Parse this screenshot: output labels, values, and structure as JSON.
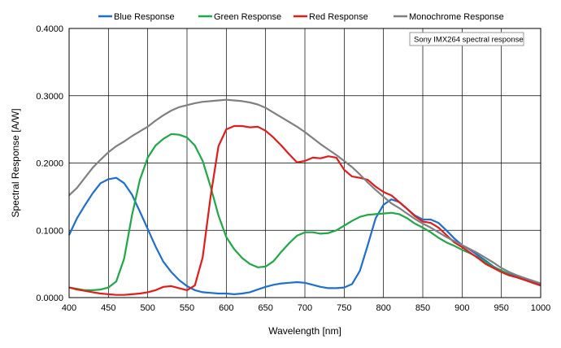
{
  "chart_data": {
    "type": "line",
    "xlabel": "Wavelength [nm]",
    "ylabel": "Spectral Response [A/W]",
    "xlim": [
      400,
      1000
    ],
    "ylim": [
      0,
      0.4
    ],
    "x_ticks": [
      400,
      450,
      500,
      550,
      600,
      650,
      700,
      750,
      800,
      850,
      900,
      950,
      1000
    ],
    "y_ticks": [
      0,
      0.1,
      0.2,
      0.3,
      0.4
    ],
    "x_tick_labels": [
      "400",
      "450",
      "500",
      "550",
      "600",
      "650",
      "700",
      "750",
      "800",
      "850",
      "900",
      "950",
      "1000"
    ],
    "y_tick_labels": [
      "0.0000",
      "0.1000",
      "0.2000",
      "0.3000",
      "0.4000"
    ],
    "grid": true,
    "legend_position": "top",
    "annotation": "Sony IMX264 spectral response",
    "series": [
      {
        "name": "Blue Response",
        "color": "#1f6fd0",
        "points": [
          [
            400,
            0.093
          ],
          [
            410,
            0.118
          ],
          [
            420,
            0.137
          ],
          [
            430,
            0.155
          ],
          [
            440,
            0.17
          ],
          [
            450,
            0.176
          ],
          [
            460,
            0.178
          ],
          [
            470,
            0.17
          ],
          [
            480,
            0.153
          ],
          [
            490,
            0.128
          ],
          [
            500,
            0.102
          ],
          [
            510,
            0.076
          ],
          [
            520,
            0.053
          ],
          [
            530,
            0.038
          ],
          [
            540,
            0.026
          ],
          [
            550,
            0.017
          ],
          [
            560,
            0.011
          ],
          [
            570,
            0.008
          ],
          [
            580,
            0.007
          ],
          [
            590,
            0.006
          ],
          [
            600,
            0.006
          ],
          [
            610,
            0.005
          ],
          [
            620,
            0.006
          ],
          [
            630,
            0.008
          ],
          [
            640,
            0.012
          ],
          [
            650,
            0.016
          ],
          [
            660,
            0.019
          ],
          [
            670,
            0.021
          ],
          [
            680,
            0.022
          ],
          [
            690,
            0.023
          ],
          [
            700,
            0.022
          ],
          [
            710,
            0.019
          ],
          [
            720,
            0.016
          ],
          [
            730,
            0.014
          ],
          [
            740,
            0.014
          ],
          [
            750,
            0.015
          ],
          [
            760,
            0.02
          ],
          [
            770,
            0.04
          ],
          [
            780,
            0.078
          ],
          [
            790,
            0.118
          ],
          [
            800,
            0.138
          ],
          [
            810,
            0.146
          ],
          [
            820,
            0.142
          ],
          [
            830,
            0.132
          ],
          [
            840,
            0.122
          ],
          [
            850,
            0.116
          ],
          [
            860,
            0.116
          ],
          [
            870,
            0.111
          ],
          [
            880,
            0.1
          ],
          [
            890,
            0.088
          ],
          [
            900,
            0.078
          ],
          [
            910,
            0.071
          ],
          [
            920,
            0.063
          ],
          [
            930,
            0.055
          ],
          [
            940,
            0.046
          ],
          [
            950,
            0.04
          ],
          [
            960,
            0.035
          ],
          [
            970,
            0.031
          ],
          [
            980,
            0.027
          ],
          [
            990,
            0.024
          ],
          [
            1000,
            0.02
          ]
        ]
      },
      {
        "name": "Green Response",
        "color": "#1ea846",
        "points": [
          [
            400,
            0.015
          ],
          [
            410,
            0.013
          ],
          [
            420,
            0.011
          ],
          [
            430,
            0.011
          ],
          [
            440,
            0.012
          ],
          [
            450,
            0.015
          ],
          [
            460,
            0.024
          ],
          [
            470,
            0.058
          ],
          [
            480,
            0.122
          ],
          [
            490,
            0.175
          ],
          [
            500,
            0.208
          ],
          [
            510,
            0.226
          ],
          [
            520,
            0.236
          ],
          [
            530,
            0.243
          ],
          [
            540,
            0.242
          ],
          [
            550,
            0.238
          ],
          [
            560,
            0.226
          ],
          [
            570,
            0.203
          ],
          [
            580,
            0.165
          ],
          [
            590,
            0.122
          ],
          [
            600,
            0.09
          ],
          [
            610,
            0.072
          ],
          [
            620,
            0.059
          ],
          [
            630,
            0.05
          ],
          [
            640,
            0.045
          ],
          [
            650,
            0.046
          ],
          [
            660,
            0.054
          ],
          [
            670,
            0.068
          ],
          [
            680,
            0.081
          ],
          [
            690,
            0.092
          ],
          [
            700,
            0.097
          ],
          [
            710,
            0.097
          ],
          [
            720,
            0.095
          ],
          [
            730,
            0.096
          ],
          [
            740,
            0.1
          ],
          [
            750,
            0.107
          ],
          [
            760,
            0.114
          ],
          [
            770,
            0.12
          ],
          [
            780,
            0.123
          ],
          [
            790,
            0.124
          ],
          [
            800,
            0.125
          ],
          [
            810,
            0.126
          ],
          [
            820,
            0.124
          ],
          [
            830,
            0.118
          ],
          [
            840,
            0.11
          ],
          [
            850,
            0.104
          ],
          [
            860,
            0.097
          ],
          [
            870,
            0.089
          ],
          [
            880,
            0.082
          ],
          [
            890,
            0.077
          ],
          [
            900,
            0.071
          ],
          [
            910,
            0.066
          ],
          [
            920,
            0.06
          ],
          [
            930,
            0.053
          ],
          [
            940,
            0.045
          ],
          [
            950,
            0.04
          ],
          [
            960,
            0.034
          ],
          [
            970,
            0.03
          ],
          [
            980,
            0.026
          ],
          [
            990,
            0.022
          ],
          [
            1000,
            0.018
          ]
        ]
      },
      {
        "name": "Red Response",
        "color": "#e41b1b",
        "points": [
          [
            400,
            0.015
          ],
          [
            410,
            0.012
          ],
          [
            420,
            0.01
          ],
          [
            430,
            0.008
          ],
          [
            440,
            0.006
          ],
          [
            450,
            0.005
          ],
          [
            460,
            0.004
          ],
          [
            470,
            0.004
          ],
          [
            480,
            0.005
          ],
          [
            490,
            0.006
          ],
          [
            500,
            0.008
          ],
          [
            510,
            0.011
          ],
          [
            520,
            0.016
          ],
          [
            530,
            0.017
          ],
          [
            540,
            0.014
          ],
          [
            550,
            0.011
          ],
          [
            560,
            0.018
          ],
          [
            570,
            0.06
          ],
          [
            580,
            0.15
          ],
          [
            590,
            0.225
          ],
          [
            600,
            0.25
          ],
          [
            610,
            0.255
          ],
          [
            620,
            0.255
          ],
          [
            630,
            0.253
          ],
          [
            640,
            0.254
          ],
          [
            650,
            0.248
          ],
          [
            660,
            0.238
          ],
          [
            670,
            0.226
          ],
          [
            680,
            0.213
          ],
          [
            690,
            0.201
          ],
          [
            700,
            0.203
          ],
          [
            710,
            0.208
          ],
          [
            720,
            0.207
          ],
          [
            730,
            0.21
          ],
          [
            740,
            0.208
          ],
          [
            750,
            0.19
          ],
          [
            760,
            0.18
          ],
          [
            770,
            0.178
          ],
          [
            780,
            0.175
          ],
          [
            790,
            0.165
          ],
          [
            800,
            0.157
          ],
          [
            810,
            0.152
          ],
          [
            820,
            0.142
          ],
          [
            830,
            0.132
          ],
          [
            840,
            0.121
          ],
          [
            850,
            0.113
          ],
          [
            860,
            0.111
          ],
          [
            870,
            0.104
          ],
          [
            880,
            0.093
          ],
          [
            890,
            0.082
          ],
          [
            900,
            0.075
          ],
          [
            910,
            0.067
          ],
          [
            920,
            0.059
          ],
          [
            930,
            0.05
          ],
          [
            940,
            0.044
          ],
          [
            950,
            0.038
          ],
          [
            960,
            0.033
          ],
          [
            970,
            0.03
          ],
          [
            980,
            0.026
          ],
          [
            990,
            0.022
          ],
          [
            1000,
            0.018
          ]
        ]
      },
      {
        "name": "Monochrome Response",
        "color": "#808080",
        "points": [
          [
            400,
            0.152
          ],
          [
            410,
            0.163
          ],
          [
            420,
            0.178
          ],
          [
            430,
            0.193
          ],
          [
            440,
            0.205
          ],
          [
            450,
            0.216
          ],
          [
            460,
            0.225
          ],
          [
            470,
            0.232
          ],
          [
            480,
            0.24
          ],
          [
            490,
            0.247
          ],
          [
            500,
            0.254
          ],
          [
            510,
            0.263
          ],
          [
            520,
            0.271
          ],
          [
            530,
            0.278
          ],
          [
            540,
            0.283
          ],
          [
            550,
            0.286
          ],
          [
            560,
            0.289
          ],
          [
            570,
            0.291
          ],
          [
            580,
            0.292
          ],
          [
            590,
            0.293
          ],
          [
            600,
            0.294
          ],
          [
            610,
            0.293
          ],
          [
            620,
            0.292
          ],
          [
            630,
            0.29
          ],
          [
            640,
            0.287
          ],
          [
            650,
            0.282
          ],
          [
            660,
            0.275
          ],
          [
            670,
            0.268
          ],
          [
            680,
            0.261
          ],
          [
            690,
            0.254
          ],
          [
            700,
            0.246
          ],
          [
            710,
            0.237
          ],
          [
            720,
            0.228
          ],
          [
            730,
            0.22
          ],
          [
            740,
            0.212
          ],
          [
            750,
            0.203
          ],
          [
            760,
            0.194
          ],
          [
            770,
            0.183
          ],
          [
            780,
            0.171
          ],
          [
            790,
            0.16
          ],
          [
            800,
            0.15
          ],
          [
            810,
            0.14
          ],
          [
            820,
            0.133
          ],
          [
            830,
            0.125
          ],
          [
            840,
            0.117
          ],
          [
            850,
            0.11
          ],
          [
            860,
            0.104
          ],
          [
            870,
            0.097
          ],
          [
            880,
            0.09
          ],
          [
            890,
            0.084
          ],
          [
            900,
            0.078
          ],
          [
            910,
            0.072
          ],
          [
            920,
            0.066
          ],
          [
            930,
            0.059
          ],
          [
            940,
            0.052
          ],
          [
            950,
            0.044
          ],
          [
            960,
            0.038
          ],
          [
            970,
            0.033
          ],
          [
            980,
            0.029
          ],
          [
            990,
            0.025
          ],
          [
            1000,
            0.021
          ]
        ]
      }
    ]
  }
}
